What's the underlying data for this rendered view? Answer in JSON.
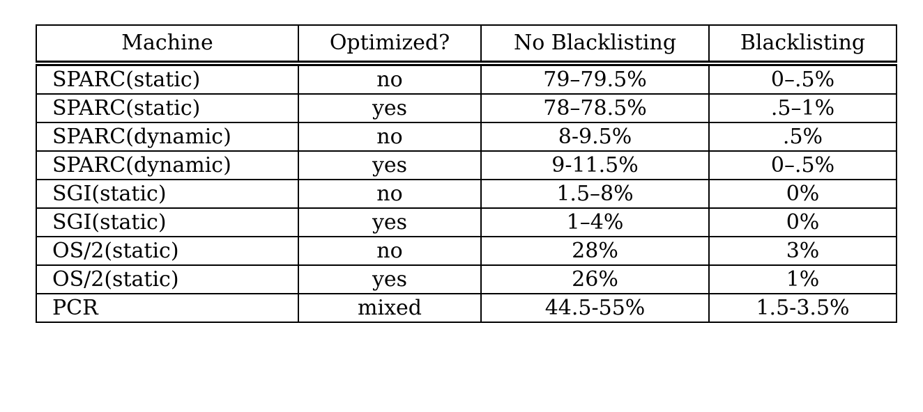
{
  "table": {
    "headers": [
      "Machine",
      "Optimized?",
      "No Blacklisting",
      "Blacklisting"
    ],
    "rows": [
      [
        "SPARC(static)",
        "no",
        "79–79.5%",
        "0–.5%"
      ],
      [
        "SPARC(static)",
        "yes",
        "78–78.5%",
        ".5–1%"
      ],
      [
        "SPARC(dynamic)",
        "no",
        "8-9.5%",
        ".5%"
      ],
      [
        "SPARC(dynamic)",
        "yes",
        "9-11.5%",
        "0–.5%"
      ],
      [
        "SGI(static)",
        "no",
        "1.5–8%",
        "0%"
      ],
      [
        "SGI(static)",
        "yes",
        "1–4%",
        "0%"
      ],
      [
        "OS/2(static)",
        "no",
        "28%",
        "3%"
      ],
      [
        "OS/2(static)",
        "yes",
        "26%",
        "1%"
      ],
      [
        "PCR",
        "mixed",
        "44.5-55%",
        "1.5-3.5%"
      ]
    ]
  }
}
